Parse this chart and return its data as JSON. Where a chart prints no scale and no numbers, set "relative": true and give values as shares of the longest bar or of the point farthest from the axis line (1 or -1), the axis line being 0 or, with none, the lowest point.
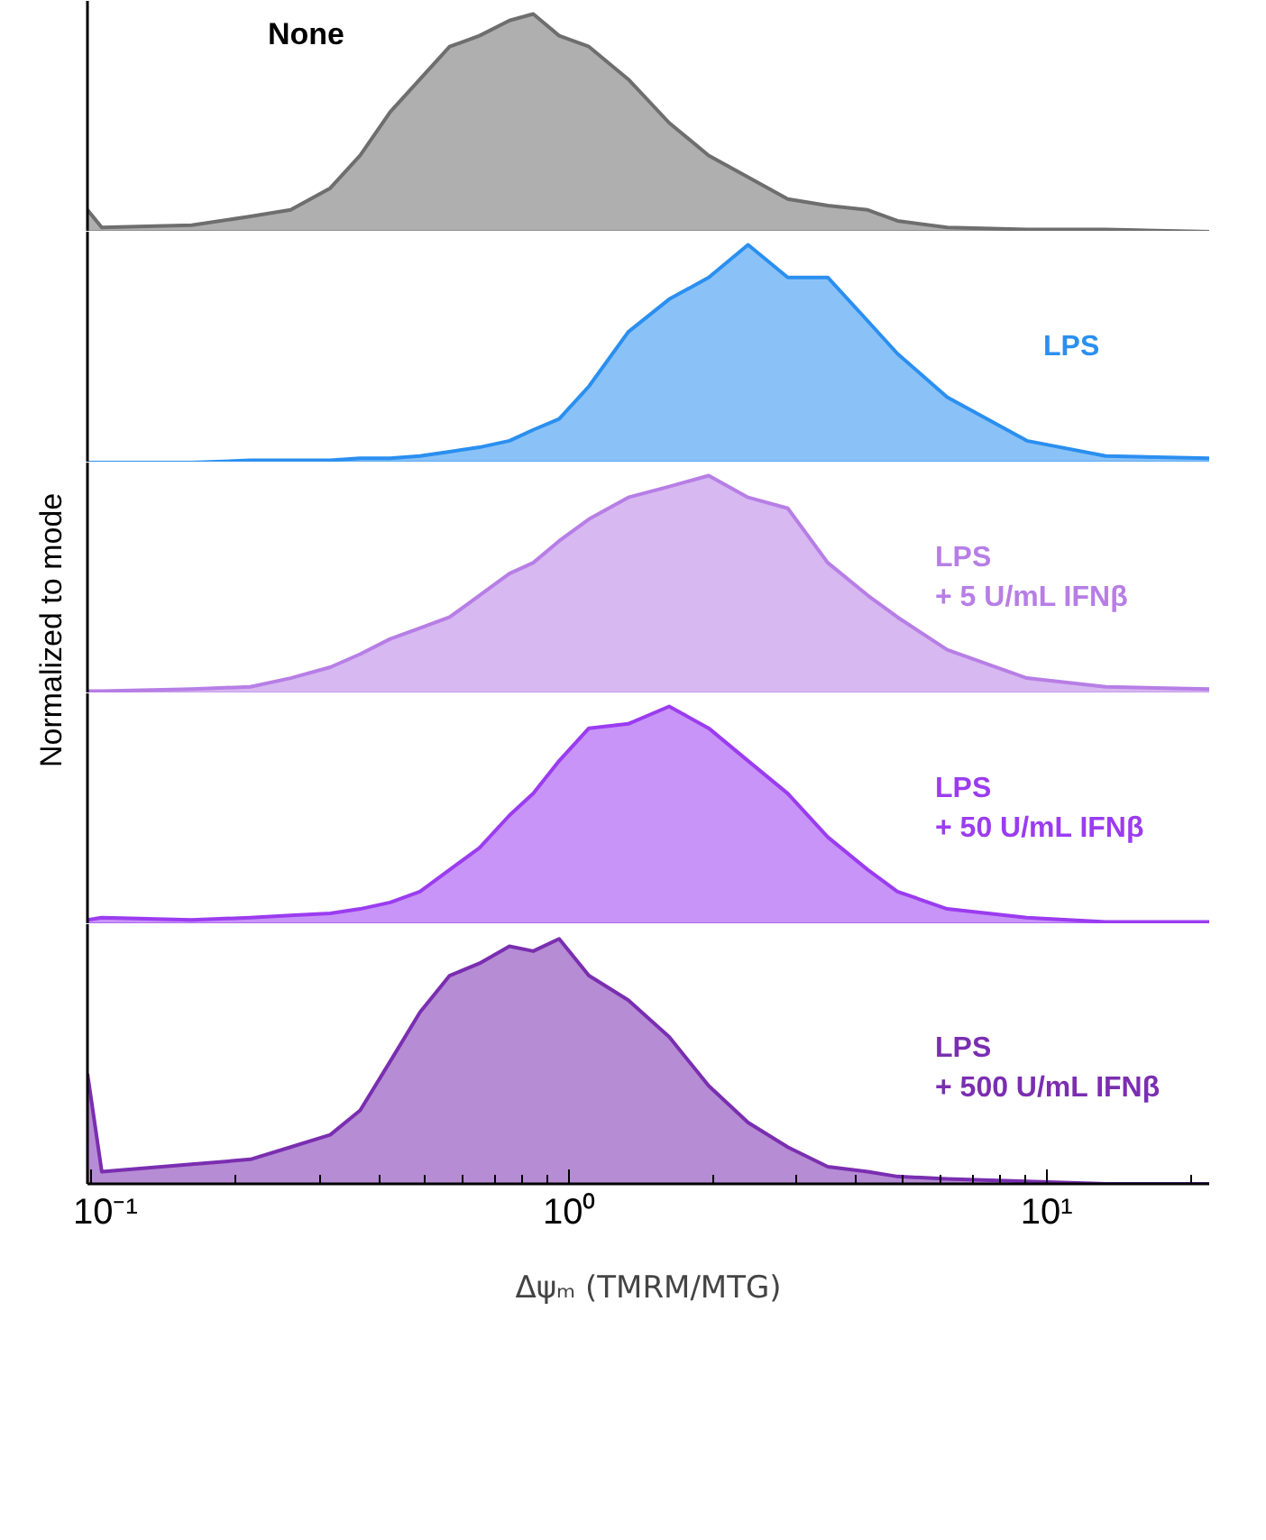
{
  "chart_data": [
    {
      "type": "area",
      "relative": true,
      "x": [
        0.098,
        0.105,
        0.162,
        0.215,
        0.261,
        0.316,
        0.365,
        0.422,
        0.487,
        0.562,
        0.649,
        0.75,
        0.841,
        0.953,
        1.1,
        1.33,
        1.62,
        1.96,
        2.37,
        2.87,
        3.48,
        4.22,
        4.87,
        6.19,
        9.09,
        13.3,
        21.9
      ],
      "xlim": [
        0.098,
        21.9
      ],
      "log": "x",
      "tick_labels": false,
      "series": [
        {
          "name": "None",
          "color": "#6e6e6e",
          "values": [
            0.1,
            0.02,
            0.03,
            0.07,
            0.1,
            0.2,
            0.35,
            0.55,
            0.7,
            0.85,
            0.9,
            0.97,
            1.0,
            0.9,
            0.85,
            0.7,
            0.5,
            0.35,
            0.25,
            0.15,
            0.12,
            0.1,
            0.05,
            0.02,
            0.01,
            0.01,
            0.0
          ]
        }
      ]
    },
    {
      "type": "area",
      "relative": true,
      "x": [
        0.098,
        0.105,
        0.162,
        0.215,
        0.261,
        0.316,
        0.365,
        0.422,
        0.487,
        0.562,
        0.649,
        0.75,
        0.841,
        0.953,
        1.1,
        1.33,
        1.62,
        1.96,
        2.37,
        2.87,
        3.48,
        4.22,
        4.87,
        6.19,
        9.09,
        13.3,
        21.9
      ],
      "xlim": [
        0.098,
        21.9
      ],
      "log": "x",
      "tick_labels": false,
      "series": [
        {
          "name": "LPS",
          "color": "#2a8ff0",
          "values": [
            0.0,
            0.0,
            0.0,
            0.01,
            0.01,
            0.01,
            0.02,
            0.02,
            0.03,
            0.05,
            0.07,
            0.1,
            0.15,
            0.2,
            0.35,
            0.6,
            0.75,
            0.85,
            1.0,
            0.85,
            0.85,
            0.65,
            0.5,
            0.3,
            0.1,
            0.03,
            0.02
          ]
        }
      ]
    },
    {
      "type": "area",
      "relative": true,
      "ylabel": "Normalized to mode",
      "x": [
        0.098,
        0.105,
        0.162,
        0.215,
        0.261,
        0.316,
        0.365,
        0.422,
        0.487,
        0.562,
        0.649,
        0.75,
        0.841,
        0.953,
        1.1,
        1.33,
        1.62,
        1.96,
        2.37,
        2.87,
        3.48,
        4.22,
        4.87,
        6.19,
        9.09,
        13.3,
        21.9
      ],
      "xlim": [
        0.098,
        21.9
      ],
      "log": "x",
      "tick_labels": false,
      "series": [
        {
          "name": "LPS\n+ 5 U/mL IFNβ",
          "color": "#b77ee6",
          "values": [
            0.01,
            0.01,
            0.02,
            0.03,
            0.07,
            0.12,
            0.18,
            0.25,
            0.3,
            0.35,
            0.45,
            0.55,
            0.6,
            0.7,
            0.8,
            0.9,
            0.95,
            1.0,
            0.9,
            0.85,
            0.6,
            0.45,
            0.35,
            0.2,
            0.07,
            0.03,
            0.02
          ]
        }
      ]
    },
    {
      "type": "area",
      "relative": true,
      "x": [
        0.098,
        0.105,
        0.162,
        0.215,
        0.261,
        0.316,
        0.365,
        0.422,
        0.487,
        0.562,
        0.649,
        0.75,
        0.841,
        0.953,
        1.1,
        1.33,
        1.62,
        1.96,
        2.37,
        2.87,
        3.48,
        4.22,
        4.87,
        6.19,
        9.09,
        13.3,
        21.9
      ],
      "xlim": [
        0.098,
        21.9
      ],
      "log": "x",
      "tick_labels": false,
      "series": [
        {
          "name": "LPS\n+ 50 U/mL IFNβ",
          "color": "#9b3cf0",
          "values": [
            0.02,
            0.03,
            0.02,
            0.03,
            0.04,
            0.05,
            0.07,
            0.1,
            0.15,
            0.25,
            0.35,
            0.5,
            0.6,
            0.75,
            0.9,
            0.92,
            1.0,
            0.9,
            0.75,
            0.6,
            0.4,
            0.25,
            0.15,
            0.07,
            0.03,
            0.01,
            0.01
          ]
        }
      ]
    },
    {
      "type": "area",
      "relative": true,
      "xlabel": "Δψₘ (TMRM/MTG)",
      "x": [
        0.098,
        0.105,
        0.162,
        0.215,
        0.261,
        0.316,
        0.365,
        0.422,
        0.487,
        0.562,
        0.649,
        0.75,
        0.841,
        0.953,
        1.1,
        1.33,
        1.62,
        1.96,
        2.37,
        2.87,
        3.48,
        4.22,
        4.87,
        6.19,
        9.09,
        13.3,
        21.9
      ],
      "xlim": [
        0.098,
        21.9
      ],
      "log": "x",
      "tick_labels": "x",
      "xticks": [
        {
          "value": 0.1,
          "label": "10⁻¹"
        },
        {
          "value": 1,
          "label": "10⁰"
        },
        {
          "value": 10,
          "label": "10¹"
        }
      ],
      "series": [
        {
          "name": "LPS\n+ 500 U/mL IFNβ",
          "color": "#7a2eb0",
          "values": [
            0.45,
            0.05,
            0.08,
            0.1,
            0.15,
            0.2,
            0.3,
            0.5,
            0.7,
            0.85,
            0.9,
            0.97,
            0.95,
            1.0,
            0.85,
            0.75,
            0.6,
            0.4,
            0.25,
            0.15,
            0.07,
            0.05,
            0.03,
            0.02,
            0.01,
            0.0,
            0.0
          ]
        }
      ]
    }
  ]
}
